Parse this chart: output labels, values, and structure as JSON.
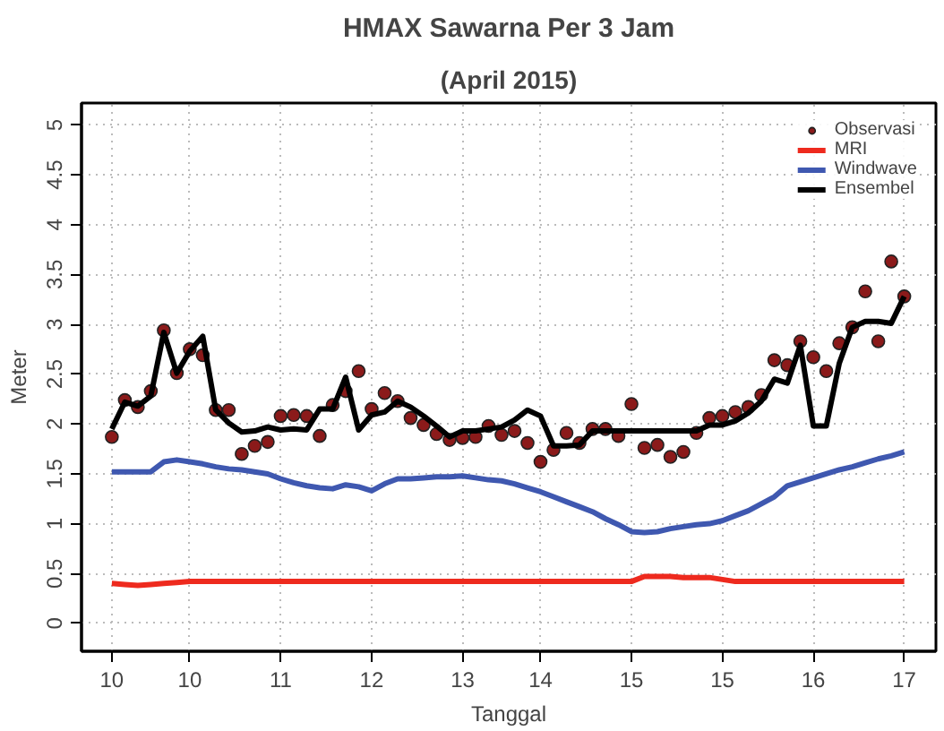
{
  "chart_data": {
    "type": "line",
    "title": "HMAX Sawarna Per 3 Jam",
    "subtitle": "(April 2015)",
    "xlabel": "Tanggal",
    "ylabel": "Meter",
    "ylim": [
      -0.28,
      5.22
    ],
    "categories": [
      "10",
      null,
      null,
      null,
      null,
      null,
      "10",
      null,
      null,
      null,
      null,
      null,
      null,
      "11",
      null,
      null,
      null,
      null,
      null,
      null,
      "12",
      null,
      null,
      null,
      null,
      null,
      null,
      "13",
      null,
      null,
      null,
      null,
      null,
      "14",
      null,
      null,
      null,
      null,
      null,
      null,
      "15",
      null,
      null,
      null,
      null,
      null,
      null,
      "15",
      null,
      null,
      null,
      null,
      null,
      null,
      "16",
      null,
      null,
      null,
      null,
      null,
      null,
      "17"
    ],
    "yticks": [
      0,
      0.5,
      1,
      1.5,
      2,
      2.5,
      3,
      3.5,
      4,
      4.5,
      5
    ],
    "grid": true,
    "legend": "top right",
    "series": [
      {
        "name": "Observasi",
        "type": "scatter",
        "marker": "circle",
        "color": "#8b1a1a",
        "values": [
          1.87,
          2.24,
          2.17,
          2.33,
          2.94,
          2.51,
          2.75,
          2.69,
          2.14,
          2.14,
          1.7,
          1.78,
          1.82,
          2.08,
          2.09,
          2.08,
          1.88,
          2.19,
          2.33,
          2.53,
          2.15,
          2.31,
          2.23,
          2.06,
          1.99,
          1.9,
          1.84,
          1.86,
          1.87,
          1.98,
          1.89,
          1.93,
          1.81,
          1.62,
          1.74,
          1.91,
          1.81,
          1.95,
          1.95,
          1.88,
          2.2,
          1.76,
          1.79,
          1.67,
          1.72,
          1.91,
          2.06,
          2.08,
          2.12,
          2.17,
          2.29,
          2.64,
          2.59,
          2.83,
          2.67,
          2.53,
          2.81,
          2.97,
          3.33,
          2.83,
          3.63,
          3.28
        ]
      },
      {
        "name": "MRI",
        "color": "#ee2a1e",
        "values": [
          0.4,
          0.39,
          0.38,
          0.39,
          0.4,
          0.41,
          0.42,
          0.42,
          0.42,
          0.42,
          0.42,
          0.42,
          0.42,
          0.42,
          0.42,
          0.42,
          0.42,
          0.42,
          0.42,
          0.42,
          0.42,
          0.42,
          0.42,
          0.42,
          0.42,
          0.42,
          0.42,
          0.42,
          0.42,
          0.42,
          0.42,
          0.42,
          0.42,
          0.42,
          0.42,
          0.42,
          0.42,
          0.42,
          0.42,
          0.42,
          0.42,
          0.47,
          0.47,
          0.47,
          0.46,
          0.46,
          0.46,
          0.44,
          0.42,
          0.42,
          0.42,
          0.42,
          0.42,
          0.42,
          0.42,
          0.42,
          0.42,
          0.42,
          0.42,
          0.42,
          0.42,
          0.42
        ]
      },
      {
        "name": "Windwave",
        "color": "#3f58b0",
        "values": [
          1.52,
          1.52,
          1.52,
          1.52,
          1.62,
          1.64,
          1.62,
          1.6,
          1.57,
          1.55,
          1.54,
          1.52,
          1.5,
          1.45,
          1.41,
          1.38,
          1.36,
          1.35,
          1.39,
          1.37,
          1.33,
          1.4,
          1.45,
          1.45,
          1.46,
          1.47,
          1.47,
          1.48,
          1.46,
          1.44,
          1.43,
          1.4,
          1.36,
          1.32,
          1.27,
          1.22,
          1.17,
          1.12,
          1.05,
          0.99,
          0.92,
          0.91,
          0.92,
          0.95,
          0.97,
          0.99,
          1.0,
          1.03,
          1.08,
          1.13,
          1.2,
          1.27,
          1.38,
          1.42,
          1.46,
          1.5,
          1.54,
          1.57,
          1.61,
          1.65,
          1.68,
          1.72
        ]
      },
      {
        "name": "Ensembel",
        "color": "#000000",
        "values": [
          1.95,
          2.22,
          2.18,
          2.28,
          2.92,
          2.51,
          2.73,
          2.88,
          2.14,
          2.01,
          1.92,
          1.93,
          1.97,
          1.94,
          1.95,
          1.94,
          2.15,
          2.15,
          2.47,
          1.94,
          2.09,
          2.12,
          2.23,
          2.17,
          2.08,
          1.98,
          1.87,
          1.93,
          1.93,
          1.95,
          1.97,
          2.04,
          2.14,
          2.08,
          1.78,
          1.78,
          1.79,
          1.93,
          1.93,
          1.93,
          1.93,
          1.93,
          1.93,
          1.93,
          1.93,
          1.93,
          1.99,
          1.99,
          2.03,
          2.11,
          2.23,
          2.45,
          2.41,
          2.79,
          1.98,
          1.98,
          2.61,
          2.97,
          3.03,
          3.03,
          3.01,
          3.28
        ]
      }
    ]
  }
}
